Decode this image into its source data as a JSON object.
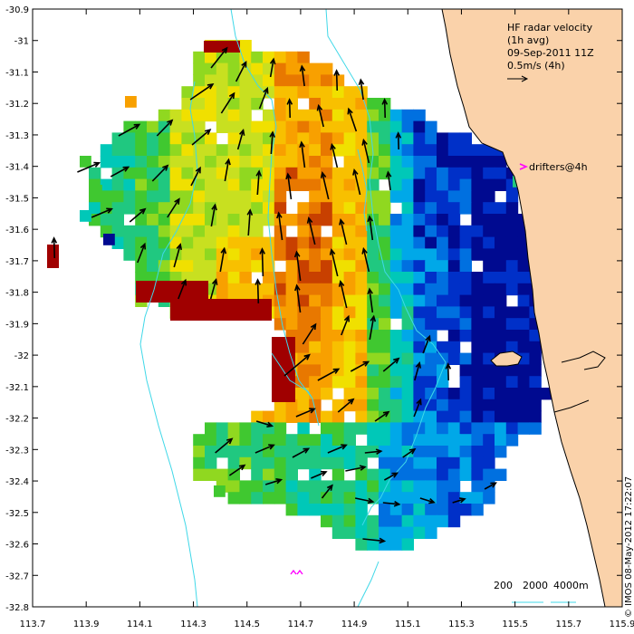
{
  "map": {
    "title_lines": [
      "HF radar velocity",
      "(1h avg)",
      "09-Sep-2011 11Z",
      "0.5m/s (4h)"
    ],
    "drifters_label": "drifters@4h",
    "credit": "© IMOS 08-May-2012 17:22:07",
    "depth_legend": [
      "200",
      "2000",
      "4000m"
    ],
    "lat_ticks": [
      "-30.9",
      "-31",
      "-31.1",
      "-31.2",
      "-31.3",
      "-31.4",
      "-31.5",
      "-31.6",
      "-31.7",
      "-31.8",
      "-31.9",
      "-32",
      "-32.1",
      "-32.2",
      "-32.3",
      "-32.4",
      "-32.5",
      "-32.6",
      "-32.7",
      "-32.8"
    ],
    "lon_ticks": [
      "113.7",
      "113.9",
      "114.1",
      "114.3",
      "114.5",
      "114.7",
      "114.9",
      "115.1",
      "115.3",
      "115.5",
      "115.7",
      "115.9"
    ],
    "colors": {
      "land": "#fad2aa",
      "coast": "#000000",
      "isobath": "#40d8e8",
      "arrow": "#000000",
      "drifter": "#ff00ff",
      "velocity_scale": [
        "#000a90",
        "#0030c8",
        "#0070e0",
        "#00a8e8",
        "#00c8b8",
        "#20c880",
        "#40c830",
        "#90d820",
        "#c8e020",
        "#f0e000",
        "#f8c000",
        "#f8a000",
        "#e87800",
        "#c84000",
        "#a00000"
      ]
    }
  }
}
